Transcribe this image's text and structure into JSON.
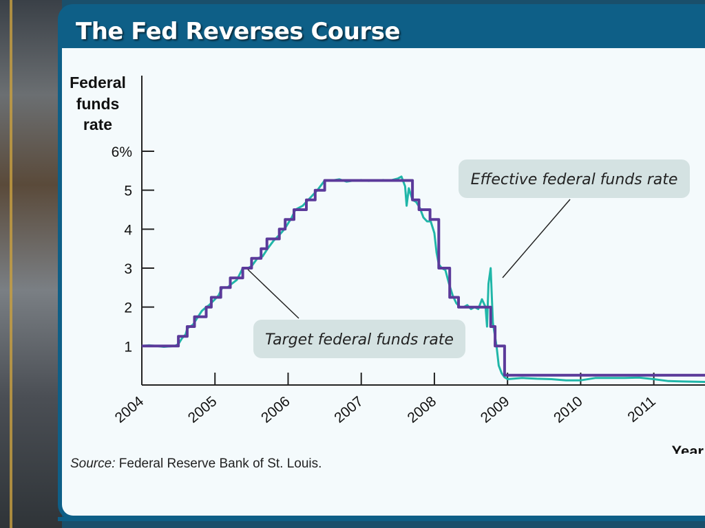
{
  "slide": {
    "title": "The Fed Reverses Course",
    "source_label": "Source:",
    "source_text": "Federal Reserve Bank of St. Louis."
  },
  "colors": {
    "frame": "#0e5f87",
    "target_line": "#5b3a9a",
    "effective_line": "#20b6a8",
    "callout_bg": "#d4e2e2",
    "axis": "#222222"
  },
  "chart_data": {
    "type": "line",
    "ylabel": "Federal funds rate",
    "xlabel": "Year",
    "ylim": [
      0,
      6
    ],
    "xlim": [
      2004,
      2011.7
    ],
    "y_ticks": [
      {
        "value": 6,
        "label": "6%"
      },
      {
        "value": 5,
        "label": "5"
      },
      {
        "value": 4,
        "label": "4"
      },
      {
        "value": 3,
        "label": "3"
      },
      {
        "value": 2,
        "label": "2"
      },
      {
        "value": 1,
        "label": "1"
      }
    ],
    "x_ticks": [
      {
        "value": 2004,
        "label": "2004"
      },
      {
        "value": 2005,
        "label": "2005"
      },
      {
        "value": 2006,
        "label": "2006"
      },
      {
        "value": 2007,
        "label": "2007"
      },
      {
        "value": 2008,
        "label": "2008"
      },
      {
        "value": 2009,
        "label": "2009"
      },
      {
        "value": 2010,
        "label": "2010"
      },
      {
        "value": 2011,
        "label": "2011"
      }
    ],
    "series": [
      {
        "name": "Effective federal funds rate",
        "x": [
          2004.0,
          2004.1,
          2004.2,
          2004.3,
          2004.45,
          2004.5,
          2004.55,
          2004.6,
          2004.62,
          2004.7,
          2004.75,
          2004.82,
          2004.88,
          2004.92,
          2005.0,
          2005.05,
          2005.1,
          2005.17,
          2005.23,
          2005.3,
          2005.38,
          2005.45,
          2005.5,
          2005.58,
          2005.65,
          2005.72,
          2005.8,
          2005.88,
          2005.95,
          2006.05,
          2006.1,
          2006.2,
          2006.3,
          2006.4,
          2006.5,
          2006.6,
          2006.7,
          2006.8,
          2006.9,
          2007.0,
          2007.1,
          2007.2,
          2007.3,
          2007.4,
          2007.5,
          2007.55,
          2007.6,
          2007.62,
          2007.65,
          2007.7,
          2007.75,
          2007.8,
          2007.85,
          2007.9,
          2007.95,
          2008.0,
          2008.03,
          2008.06,
          2008.1,
          2008.15,
          2008.2,
          2008.25,
          2008.3,
          2008.35,
          2008.4,
          2008.45,
          2008.5,
          2008.55,
          2008.6,
          2008.65,
          2008.7,
          2008.72,
          2008.74,
          2008.77,
          2008.8,
          2008.85,
          2008.88,
          2008.92,
          2008.96,
          2009.0,
          2009.2,
          2009.4,
          2009.6,
          2009.8,
          2010.0,
          2010.2,
          2010.4,
          2010.6,
          2010.8,
          2011.0,
          2011.2,
          2011.4,
          2011.7
        ],
        "y": [
          1.0,
          1.02,
          1.0,
          0.98,
          1.0,
          1.05,
          1.2,
          1.3,
          1.45,
          1.55,
          1.7,
          1.9,
          2.0,
          2.05,
          2.2,
          2.3,
          2.5,
          2.5,
          2.6,
          2.7,
          3.0,
          3.0,
          3.05,
          3.25,
          3.3,
          3.5,
          3.7,
          3.85,
          4.0,
          4.3,
          4.5,
          4.6,
          4.8,
          5.0,
          5.25,
          5.25,
          5.28,
          5.22,
          5.25,
          5.26,
          5.24,
          5.25,
          5.26,
          5.25,
          5.3,
          5.35,
          5.1,
          4.6,
          5.05,
          4.75,
          4.7,
          4.55,
          4.3,
          4.2,
          4.2,
          3.9,
          3.4,
          3.1,
          3.0,
          2.95,
          2.6,
          2.3,
          2.1,
          2.0,
          2.0,
          2.05,
          1.95,
          2.0,
          1.95,
          2.2,
          2.0,
          1.5,
          2.6,
          3.0,
          1.6,
          1.0,
          0.5,
          0.3,
          0.2,
          0.15,
          0.18,
          0.16,
          0.15,
          0.12,
          0.12,
          0.18,
          0.18,
          0.18,
          0.19,
          0.15,
          0.1,
          0.09,
          0.08
        ]
      },
      {
        "name": "Target federal funds rate",
        "x": [
          2004.0,
          2004.5,
          2004.5,
          2004.62,
          2004.62,
          2004.72,
          2004.72,
          2004.88,
          2004.88,
          2004.95,
          2004.95,
          2005.08,
          2005.08,
          2005.21,
          2005.21,
          2005.38,
          2005.38,
          2005.5,
          2005.5,
          2005.63,
          2005.63,
          2005.71,
          2005.71,
          2005.88,
          2005.88,
          2005.96,
          2005.96,
          2006.08,
          2006.08,
          2006.25,
          2006.25,
          2006.37,
          2006.37,
          2006.5,
          2006.5,
          2007.7,
          2007.7,
          2007.79,
          2007.79,
          2007.94,
          2007.94,
          2008.06,
          2008.06,
          2008.21,
          2008.21,
          2008.33,
          2008.33,
          2008.77,
          2008.77,
          2008.83,
          2008.83,
          2008.96,
          2008.96,
          2011.7
        ],
        "y": [
          1.0,
          1.0,
          1.25,
          1.25,
          1.5,
          1.5,
          1.75,
          1.75,
          2.0,
          2.0,
          2.25,
          2.25,
          2.5,
          2.5,
          2.75,
          2.75,
          3.0,
          3.0,
          3.25,
          3.25,
          3.5,
          3.5,
          3.75,
          3.75,
          4.0,
          4.0,
          4.25,
          4.25,
          4.5,
          4.5,
          4.75,
          4.75,
          5.0,
          5.0,
          5.25,
          5.25,
          4.75,
          4.75,
          4.5,
          4.5,
          4.25,
          4.25,
          3.0,
          3.0,
          2.25,
          2.25,
          2.0,
          2.0,
          1.5,
          1.5,
          1.0,
          1.0,
          0.25,
          0.25
        ]
      }
    ],
    "annotations": [
      {
        "id": "effective",
        "text": "Effective federal funds rate"
      },
      {
        "id": "target",
        "text": "Target federal funds rate"
      }
    ]
  }
}
